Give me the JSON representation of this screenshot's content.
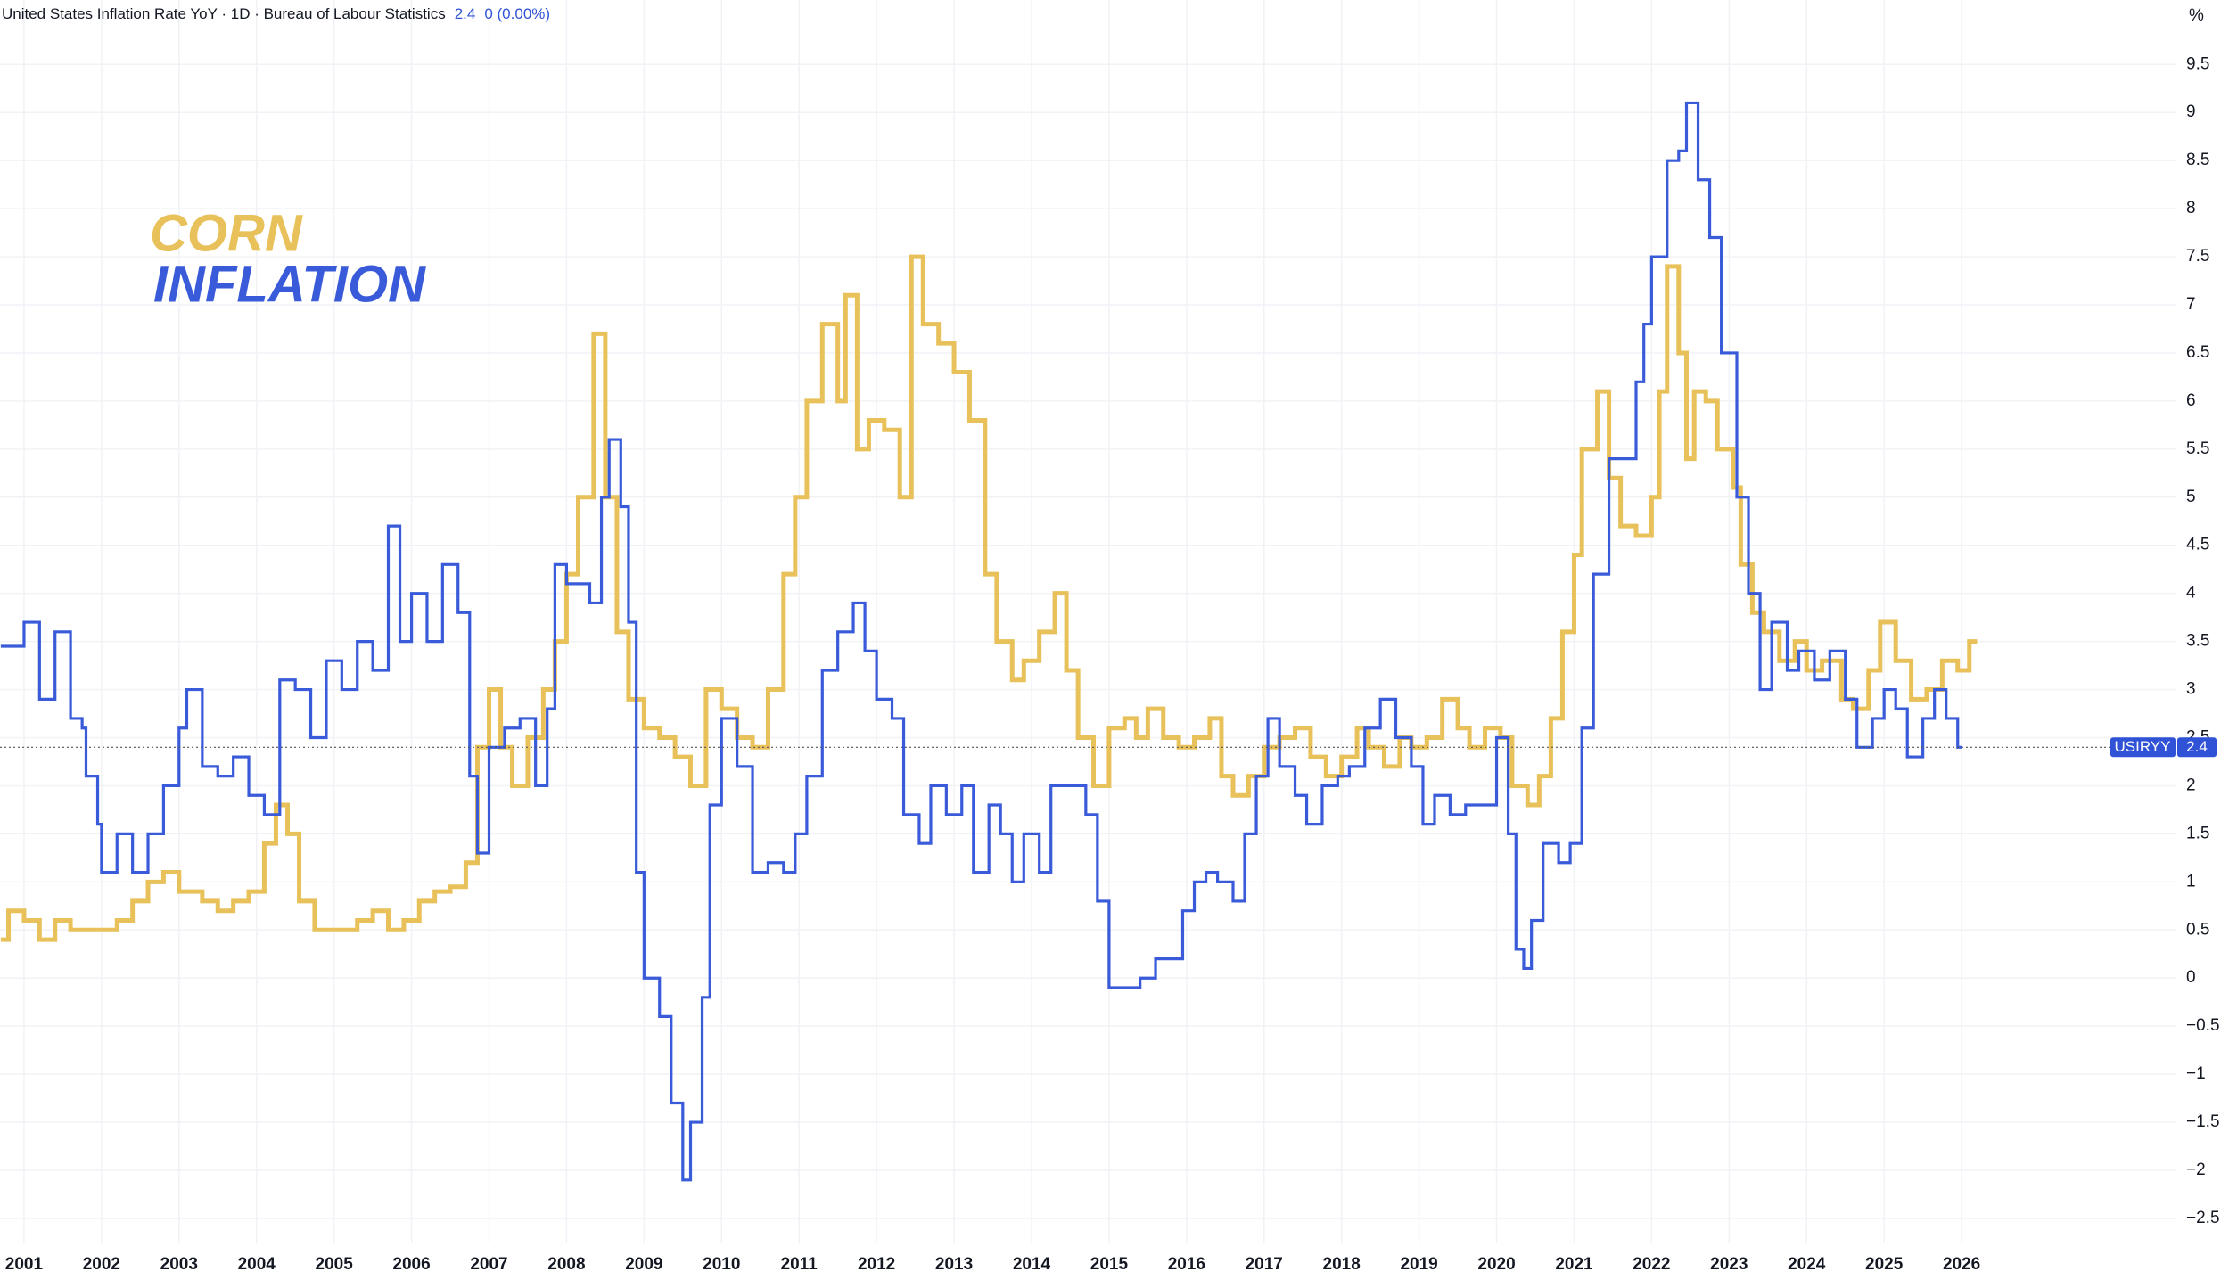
{
  "chart_data": {
    "type": "step",
    "header": {
      "title": "United States Inflation Rate YoY · 1D · Bureau of Labour Statistics",
      "value": 2.4,
      "change": "0 (0.00%)"
    },
    "unit": "%",
    "symbol": "USIRYY",
    "last_value": 2.4,
    "xlim": [
      2000.69,
      2028.76
    ],
    "ylim": [
      -2.76,
      10.17
    ],
    "xticks": [
      2001,
      2002,
      2003,
      2004,
      2005,
      2006,
      2007,
      2008,
      2009,
      2010,
      2011,
      2012,
      2013,
      2014,
      2015,
      2016,
      2017,
      2018,
      2019,
      2020,
      2021,
      2022,
      2023,
      2024,
      2025,
      2026
    ],
    "yticks": [
      {
        "value": -2.5,
        "label": "−2.5"
      },
      {
        "value": -2,
        "label": "−2"
      },
      {
        "value": -1.5,
        "label": "−1.5"
      },
      {
        "value": -1,
        "label": "−1"
      },
      {
        "value": -0.5,
        "label": "−0.5"
      },
      0,
      0.5,
      1,
      1.5,
      2,
      2.5,
      3,
      3.5,
      4,
      4.5,
      5,
      5.5,
      6,
      6.5,
      7,
      7.5,
      8,
      8.5,
      9,
      9.5
    ],
    "grid": true,
    "series": [
      {
        "name": "CORN",
        "color": "#e8c15a",
        "x": [
          2000.7,
          2000.8,
          2001.0,
          2001.2,
          2001.4,
          2001.6,
          2001.8,
          2002.0,
          2002.2,
          2002.4,
          2002.6,
          2002.8,
          2003.0,
          2003.3,
          2003.5,
          2003.7,
          2003.9,
          2004.1,
          2004.25,
          2004.4,
          2004.55,
          2004.75,
          2005.0,
          2005.3,
          2005.5,
          2005.7,
          2005.9,
          2006.1,
          2006.3,
          2006.5,
          2006.7,
          2006.85,
          2007.0,
          2007.15,
          2007.3,
          2007.5,
          2007.7,
          2007.85,
          2008.0,
          2008.15,
          2008.35,
          2008.5,
          2008.65,
          2008.8,
          2009.0,
          2009.2,
          2009.4,
          2009.6,
          2009.8,
          2010.0,
          2010.2,
          2010.4,
          2010.6,
          2010.8,
          2010.95,
          2011.1,
          2011.3,
          2011.5,
          2011.6,
          2011.75,
          2011.9,
          2012.1,
          2012.3,
          2012.45,
          2012.6,
          2012.8,
          2013.0,
          2013.2,
          2013.4,
          2013.55,
          2013.75,
          2013.9,
          2014.1,
          2014.3,
          2014.45,
          2014.6,
          2014.8,
          2015.0,
          2015.2,
          2015.35,
          2015.5,
          2015.7,
          2015.9,
          2016.1,
          2016.3,
          2016.45,
          2016.6,
          2016.8,
          2017.0,
          2017.2,
          2017.4,
          2017.6,
          2017.8,
          2018.0,
          2018.2,
          2018.35,
          2018.55,
          2018.75,
          2018.9,
          2019.1,
          2019.3,
          2019.5,
          2019.65,
          2019.85,
          2020.05,
          2020.2,
          2020.4,
          2020.55,
          2020.7,
          2020.85,
          2021.0,
          2021.1,
          2021.3,
          2021.45,
          2021.6,
          2021.8,
          2022.0,
          2022.1,
          2022.2,
          2022.35,
          2022.45,
          2022.55,
          2022.7,
          2022.85,
          2023.05,
          2023.15,
          2023.3,
          2023.45,
          2023.65,
          2023.85,
          2024.0,
          2024.2,
          2024.45,
          2024.6,
          2024.8,
          2024.95,
          2025.15,
          2025.35,
          2025.55,
          2025.75,
          2025.95,
          2026.1,
          2026.2
        ],
        "values": [
          0.4,
          0.7,
          0.6,
          0.4,
          0.6,
          0.5,
          0.5,
          0.5,
          0.6,
          0.8,
          1.0,
          1.1,
          0.9,
          0.8,
          0.7,
          0.8,
          0.9,
          1.4,
          1.8,
          1.5,
          0.8,
          0.5,
          0.5,
          0.6,
          0.7,
          0.5,
          0.6,
          0.8,
          0.9,
          0.95,
          1.2,
          2.4,
          3.0,
          2.4,
          2.0,
          2.5,
          3.0,
          3.5,
          4.2,
          5.0,
          6.7,
          5.0,
          3.6,
          2.9,
          2.6,
          2.5,
          2.3,
          2.0,
          3.0,
          2.8,
          2.5,
          2.4,
          3.0,
          4.2,
          5.0,
          6.0,
          6.8,
          6.0,
          7.1,
          5.5,
          5.8,
          5.7,
          5.0,
          7.5,
          6.8,
          6.6,
          6.3,
          5.8,
          4.2,
          3.5,
          3.1,
          3.3,
          3.6,
          4.0,
          3.2,
          2.5,
          2.0,
          2.6,
          2.7,
          2.5,
          2.8,
          2.5,
          2.4,
          2.5,
          2.7,
          2.1,
          1.9,
          2.1,
          2.4,
          2.5,
          2.6,
          2.3,
          2.1,
          2.3,
          2.6,
          2.4,
          2.2,
          2.5,
          2.4,
          2.5,
          2.9,
          2.6,
          2.4,
          2.6,
          2.5,
          2.0,
          1.8,
          2.1,
          2.7,
          3.6,
          4.4,
          5.5,
          6.1,
          5.2,
          4.7,
          4.6,
          5.0,
          6.1,
          7.4,
          6.5,
          5.4,
          6.1,
          6.0,
          5.5,
          5.1,
          4.3,
          3.8,
          3.6,
          3.3,
          3.5,
          3.2,
          3.3,
          2.9,
          2.8,
          3.2,
          3.7,
          3.3,
          2.9,
          3.0,
          3.3,
          3.2,
          3.5,
          3.5
        ]
      },
      {
        "name": "INFLATION",
        "color": "#3a5bd9",
        "x": [
          2000.7,
          2001.0,
          2001.2,
          2001.4,
          2001.6,
          2001.75,
          2001.8,
          2001.95,
          2002.0,
          2002.2,
          2002.4,
          2002.6,
          2002.8,
          2003.0,
          2003.1,
          2003.3,
          2003.5,
          2003.7,
          2003.9,
          2004.1,
          2004.3,
          2004.5,
          2004.7,
          2004.9,
          2005.1,
          2005.3,
          2005.5,
          2005.7,
          2005.85,
          2006.0,
          2006.2,
          2006.4,
          2006.6,
          2006.75,
          2006.85,
          2007.0,
          2007.2,
          2007.4,
          2007.6,
          2007.75,
          2007.85,
          2008.0,
          2008.3,
          2008.45,
          2008.55,
          2008.7,
          2008.8,
          2008.9,
          2009.0,
          2009.2,
          2009.35,
          2009.5,
          2009.6,
          2009.75,
          2009.85,
          2010.0,
          2010.2,
          2010.4,
          2010.6,
          2010.8,
          2010.95,
          2011.1,
          2011.3,
          2011.5,
          2011.7,
          2011.85,
          2012.0,
          2012.2,
          2012.35,
          2012.55,
          2012.7,
          2012.9,
          2013.1,
          2013.25,
          2013.45,
          2013.6,
          2013.75,
          2013.9,
          2014.1,
          2014.25,
          2014.5,
          2014.7,
          2014.85,
          2015.0,
          2015.2,
          2015.4,
          2015.6,
          2015.8,
          2015.95,
          2016.1,
          2016.25,
          2016.4,
          2016.6,
          2016.75,
          2016.9,
          2017.05,
          2017.2,
          2017.4,
          2017.55,
          2017.75,
          2017.95,
          2018.1,
          2018.3,
          2018.5,
          2018.7,
          2018.9,
          2019.05,
          2019.2,
          2019.4,
          2019.6,
          2019.8,
          2020.0,
          2020.15,
          2020.25,
          2020.35,
          2020.45,
          2020.6,
          2020.8,
          2020.95,
          2021.1,
          2021.25,
          2021.45,
          2021.65,
          2021.8,
          2021.9,
          2022.0,
          2022.2,
          2022.35,
          2022.45,
          2022.6,
          2022.75,
          2022.9,
          2023.1,
          2023.25,
          2023.4,
          2023.55,
          2023.75,
          2023.9,
          2024.1,
          2024.3,
          2024.5,
          2024.65,
          2024.85,
          2025.0,
          2025.15,
          2025.3,
          2025.5,
          2025.65,
          2025.8,
          2025.95,
          2026.0
        ],
        "values": [
          3.45,
          3.7,
          2.9,
          3.6,
          2.7,
          2.6,
          2.1,
          1.6,
          1.1,
          1.5,
          1.1,
          1.5,
          2.0,
          2.6,
          3.0,
          2.2,
          2.1,
          2.3,
          1.9,
          1.7,
          3.1,
          3.0,
          2.5,
          3.3,
          3.0,
          3.5,
          3.2,
          4.7,
          3.5,
          4.0,
          3.5,
          4.3,
          3.8,
          2.1,
          1.3,
          2.4,
          2.6,
          2.7,
          2.0,
          2.8,
          4.3,
          4.1,
          3.9,
          5.0,
          5.6,
          4.9,
          3.7,
          1.1,
          0.0,
          -0.4,
          -1.3,
          -2.1,
          -1.5,
          -0.2,
          1.8,
          2.7,
          2.2,
          1.1,
          1.2,
          1.1,
          1.5,
          2.1,
          3.2,
          3.6,
          3.9,
          3.4,
          2.9,
          2.7,
          1.7,
          1.4,
          2.0,
          1.7,
          2.0,
          1.1,
          1.8,
          1.5,
          1.0,
          1.5,
          1.1,
          2.0,
          2.0,
          1.7,
          0.8,
          -0.1,
          -0.1,
          0.0,
          0.2,
          0.2,
          0.7,
          1.0,
          1.1,
          1.0,
          0.8,
          1.5,
          2.1,
          2.7,
          2.2,
          1.9,
          1.6,
          2.0,
          2.1,
          2.2,
          2.6,
          2.9,
          2.5,
          2.2,
          1.6,
          1.9,
          1.7,
          1.8,
          1.8,
          2.5,
          1.5,
          0.3,
          0.1,
          0.6,
          1.4,
          1.2,
          1.4,
          2.6,
          4.2,
          5.4,
          5.4,
          6.2,
          6.8,
          7.5,
          8.5,
          8.6,
          9.1,
          8.3,
          7.7,
          6.5,
          5.0,
          4.0,
          3.0,
          3.7,
          3.2,
          3.4,
          3.1,
          3.4,
          2.9,
          2.4,
          2.7,
          3.0,
          2.8,
          2.3,
          2.7,
          3.0,
          2.7,
          2.4,
          2.4
        ]
      }
    ]
  }
}
